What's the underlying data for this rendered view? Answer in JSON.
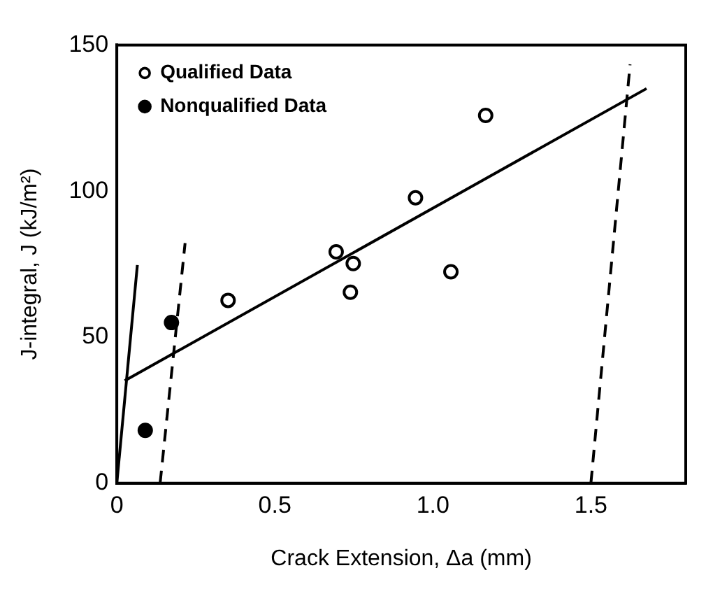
{
  "chart_data": {
    "type": "scatter",
    "xlabel": "Crack Extension, Δa (mm)",
    "ylabel": "J-integral, J (kJ/m²)",
    "xlim": [
      0,
      1.8
    ],
    "xticks": [
      0,
      {
        "value": 0.5,
        "label": "0.5"
      },
      {
        "value": 1,
        "label": "1.0"
      },
      {
        "value": 1.5,
        "label": "1.5"
      }
    ],
    "ylim": [
      0,
      150
    ],
    "yticks": [
      0,
      50,
      100,
      150
    ],
    "grid": false,
    "legend": "top left",
    "series": [
      {
        "name": "Qualified Data",
        "color": "#000000",
        "marker": "circle",
        "x": [
          0.352,
          0.694,
          0.739,
          0.748,
          0.945,
          1.057,
          1.167
        ],
        "values": [
          62.6,
          79.2,
          65.4,
          75.2,
          97.7,
          72.4,
          125.9
        ]
      },
      {
        "name": "Nonqualified Data",
        "color": "#000000",
        "marker": "circle",
        "x": [
          0.09,
          0.173
        ],
        "values": [
          18.1,
          55.0
        ]
      },
      {
        "type": "line",
        "color": "#000000",
        "marker": "none",
        "line_style": "solid",
        "x": [
          0,
          0.065
        ],
        "values": [
          0,
          74.7
        ]
      },
      {
        "type": "line",
        "color": "#000000",
        "marker": "none",
        "line_style": "dashed",
        "x": [
          0.137,
          0.216
        ],
        "values": [
          0,
          82.2
        ]
      },
      {
        "type": "line",
        "color": "#000000",
        "marker": "none",
        "line_style": "dashed",
        "x": [
          1.5,
          1.624
        ],
        "values": [
          0,
          143.4
        ]
      },
      {
        "type": "line",
        "color": "#000000",
        "marker": "none",
        "line_style": "solid",
        "x": [
          0.025,
          1.676
        ],
        "values": [
          35.1,
          135.1
        ]
      }
    ]
  }
}
